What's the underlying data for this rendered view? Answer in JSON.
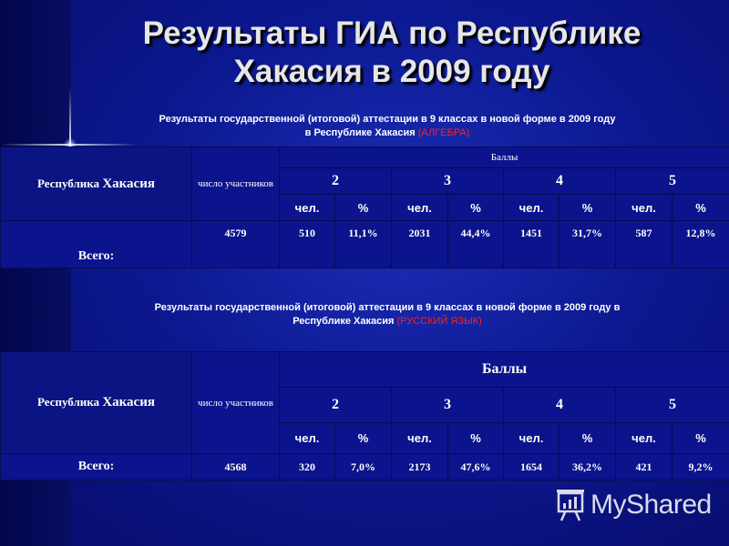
{
  "slide": {
    "title_line1": "Результаты ГИА по Республике",
    "title_line2": "Хакасия в 2009 году"
  },
  "algebra": {
    "caption_line1": "Результаты государственной (итоговой) аттестации в 9 классах в новой форме в 2009 году",
    "caption_line2": "в Республике Хакасия",
    "subject": "(АЛГЕБРА)",
    "region_prefix": "Республика",
    "region_name": "Хакасия",
    "participants_header": "число участников",
    "scores_header": "Баллы",
    "grades": [
      "2",
      "3",
      "4",
      "5"
    ],
    "units": [
      "чел.",
      "%",
      "чел.",
      "%",
      "чел.",
      "%",
      "чел.",
      "%"
    ],
    "total_label": "Всего:",
    "participants": "4579",
    "values": [
      "510",
      "11,1%",
      "2031",
      "44,4%",
      "1451",
      "31,7%",
      "587",
      "12,8%"
    ]
  },
  "russian": {
    "caption_line1": "Результаты государственной (итоговой) аттестации в 9 классах в новой форме в 2009 году в",
    "caption_line2": "Республике Хакасия",
    "subject": "(РУССКИЙ ЯЗЫК)",
    "region_prefix": "Республика",
    "region_name": "Хакасия",
    "participants_header": "число участников",
    "scores_header": "Баллы",
    "grades": [
      "2",
      "3",
      "4",
      "5"
    ],
    "units": [
      "чел.",
      "%",
      "чел.",
      "%",
      "чел.",
      "%",
      "чел.",
      "%"
    ],
    "total_label": "Всего:",
    "participants": "4568",
    "values": [
      "320",
      "7,0%",
      "2173",
      "47,6%",
      "1654",
      "36,2%",
      "421",
      "9,2%"
    ]
  },
  "watermark": {
    "text": "MyShared",
    "icon": "presentation-board-icon"
  },
  "colors": {
    "background": "#0c1890",
    "cell": "#0b148c",
    "subject_highlight": "#ff2020"
  }
}
